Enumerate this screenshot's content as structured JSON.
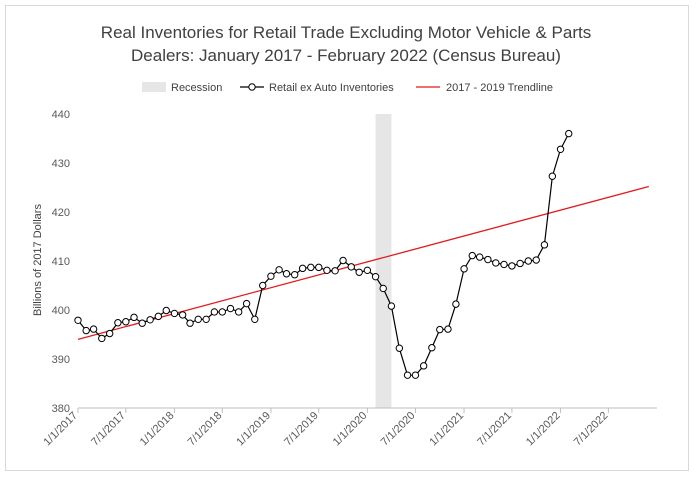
{
  "chart_data": {
    "type": "line",
    "title": [
      "Real Inventories for Retail Trade Excluding Motor Vehicle & Parts",
      "Dealers: January 2017 - February 2022 (Census Bureau)"
    ],
    "ylabel": "Billions of 2017 Dollars",
    "ylim": [
      380,
      440
    ],
    "yticks": [
      380,
      390,
      400,
      410,
      420,
      430,
      440
    ],
    "xlim": [
      "2017-01-01",
      "2023-01-01"
    ],
    "xticks": [
      "1/1/2017",
      "7/1/2017",
      "1/1/2018",
      "7/1/2018",
      "1/1/2019",
      "7/1/2019",
      "1/1/2020",
      "7/1/2020",
      "1/1/2021",
      "7/1/2021",
      "1/1/2022",
      "7/1/2022"
    ],
    "grid": false,
    "legend_position": "top",
    "legend": [
      "Recession",
      "Retail ex Auto Inventories",
      "2017 - 2019 Trendline"
    ],
    "recession": {
      "name": "Recession",
      "start": "2020-02-01",
      "end": "2020-04-01",
      "color": "#e6e6e6"
    },
    "series": [
      {
        "name": "Retail ex Auto Inventories",
        "color": "#000000",
        "marker": "circle",
        "start": "2017-01-01",
        "values": [
          397.9,
          395.8,
          396.1,
          394.2,
          395.2,
          397.4,
          397.6,
          398.5,
          397.3,
          398.0,
          398.7,
          399.9,
          399.3,
          399.0,
          397.3,
          398.1,
          398.1,
          399.6,
          399.6,
          400.3,
          399.6,
          401.3,
          398.1,
          405.0,
          406.9,
          408.2,
          407.4,
          407.2,
          408.5,
          408.7,
          408.7,
          408.1,
          408.0,
          410.1,
          408.8,
          407.7,
          408.1,
          406.8,
          404.4,
          400.8,
          392.2,
          386.7,
          386.7,
          388.6,
          392.3,
          396.0,
          396.1,
          401.2,
          408.4,
          411.1,
          410.8,
          410.3,
          409.6,
          409.3,
          409.0,
          409.5,
          410.0,
          410.2,
          413.3,
          427.3,
          432.8,
          436.0
        ]
      },
      {
        "name": "2017 - 2019 Trendline",
        "color": "#e31a1c",
        "x": [
          "2017-01-01",
          "2022-12-01"
        ],
        "y": [
          394.0,
          425.2
        ]
      }
    ]
  }
}
